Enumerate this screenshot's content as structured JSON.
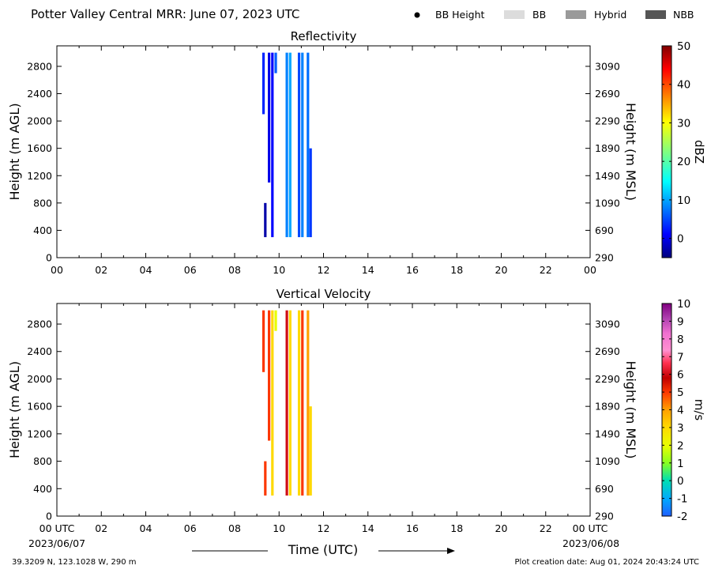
{
  "figure": {
    "title": "Potter Valley Central MRR:  June 07, 2023 UTC",
    "legend": [
      {
        "label": "BB Height",
        "kind": "dot",
        "color": "#000000"
      },
      {
        "label": "BB",
        "kind": "box",
        "color": "#dcdcdc"
      },
      {
        "label": "Hybrid",
        "kind": "box",
        "color": "#9a9a9a"
      },
      {
        "label": "NBB",
        "kind": "box",
        "color": "#555555"
      }
    ],
    "x_axis_title": "Time (UTC)",
    "start_date": "2023/06/07",
    "end_date": "2023/06/08",
    "location": "39.3209 N, 123.1028 W, 290 m",
    "creation_date": "Plot creation date: Aug 01, 2024 20:43:24 UTC"
  },
  "chart_data": [
    {
      "type": "heatmap",
      "title": "Reflectivity",
      "xlabel": "Time (UTC)",
      "ylabel": "Height (m AGL)",
      "ylabel_right": "Height (m MSL)",
      "xlim": [
        0,
        24
      ],
      "ylim": [
        0,
        3100
      ],
      "x_tick_labels": [
        "00",
        "02",
        "04",
        "06",
        "08",
        "10",
        "12",
        "14",
        "16",
        "18",
        "20",
        "22",
        "00"
      ],
      "y_ticks": [
        0,
        400,
        800,
        1200,
        1600,
        2000,
        2400,
        2800
      ],
      "y_ticks_right": [
        290,
        690,
        1090,
        1490,
        1890,
        2290,
        2690,
        3090
      ],
      "colorbar": {
        "label": "dBZ",
        "min": -5,
        "max": 50,
        "ticks": [
          0,
          10,
          20,
          30,
          40,
          50
        ],
        "colormap": "jet"
      },
      "streaks": [
        {
          "time": 9.3,
          "h_bottom": 2100,
          "h_top": 3000,
          "value": 3
        },
        {
          "time": 9.38,
          "h_bottom": 300,
          "h_top": 800,
          "value": -3
        },
        {
          "time": 9.55,
          "h_bottom": 1100,
          "h_top": 3000,
          "value": 0
        },
        {
          "time": 9.7,
          "h_bottom": 300,
          "h_top": 3000,
          "value": 1
        },
        {
          "time": 9.85,
          "h_bottom": 2700,
          "h_top": 3000,
          "value": 6
        },
        {
          "time": 10.35,
          "h_bottom": 300,
          "h_top": 3000,
          "value": 8
        },
        {
          "time": 10.5,
          "h_bottom": 300,
          "h_top": 3000,
          "value": 10
        },
        {
          "time": 10.9,
          "h_bottom": 300,
          "h_top": 3000,
          "value": 5
        },
        {
          "time": 11.05,
          "h_bottom": 300,
          "h_top": 3000,
          "value": 8
        },
        {
          "time": 11.3,
          "h_bottom": 300,
          "h_top": 3000,
          "value": 7
        },
        {
          "time": 11.42,
          "h_bottom": 300,
          "h_top": 1600,
          "value": 4
        }
      ]
    },
    {
      "type": "heatmap",
      "title": "Vertical Velocity",
      "xlabel": "Time (UTC)",
      "ylabel": "Height (m AGL)",
      "ylabel_right": "Height (m MSL)",
      "xlim": [
        0,
        24
      ],
      "ylim": [
        0,
        3100
      ],
      "x_tick_labels": [
        "00 UTC",
        "02",
        "04",
        "06",
        "08",
        "10",
        "12",
        "14",
        "16",
        "18",
        "20",
        "22",
        "00 UTC"
      ],
      "y_ticks": [
        0,
        400,
        800,
        1200,
        1600,
        2000,
        2400,
        2800
      ],
      "y_ticks_right": [
        290,
        690,
        1090,
        1490,
        1890,
        2290,
        2690,
        3090
      ],
      "colorbar": {
        "label": "m/s",
        "min": -2,
        "max": 10,
        "ticks": [
          -2,
          -1,
          0,
          1,
          2,
          3,
          4,
          5,
          6,
          7,
          8,
          9,
          10
        ],
        "colormap": "velocity"
      },
      "streaks": [
        {
          "time": 9.3,
          "h_bottom": 2100,
          "h_top": 3000,
          "value": 5
        },
        {
          "time": 9.38,
          "h_bottom": 300,
          "h_top": 800,
          "value": 5
        },
        {
          "time": 9.55,
          "h_bottom": 1100,
          "h_top": 3000,
          "value": 5
        },
        {
          "time": 9.7,
          "h_bottom": 300,
          "h_top": 3000,
          "value": 3
        },
        {
          "time": 9.85,
          "h_bottom": 2700,
          "h_top": 3000,
          "value": 2
        },
        {
          "time": 10.35,
          "h_bottom": 300,
          "h_top": 3000,
          "value": 6
        },
        {
          "time": 10.5,
          "h_bottom": 300,
          "h_top": 3000,
          "value": 3
        },
        {
          "time": 10.9,
          "h_bottom": 300,
          "h_top": 3000,
          "value": 3
        },
        {
          "time": 11.05,
          "h_bottom": 300,
          "h_top": 3000,
          "value": 5
        },
        {
          "time": 11.3,
          "h_bottom": 300,
          "h_top": 3000,
          "value": 4
        },
        {
          "time": 11.42,
          "h_bottom": 300,
          "h_top": 1600,
          "value": 3
        }
      ]
    }
  ]
}
